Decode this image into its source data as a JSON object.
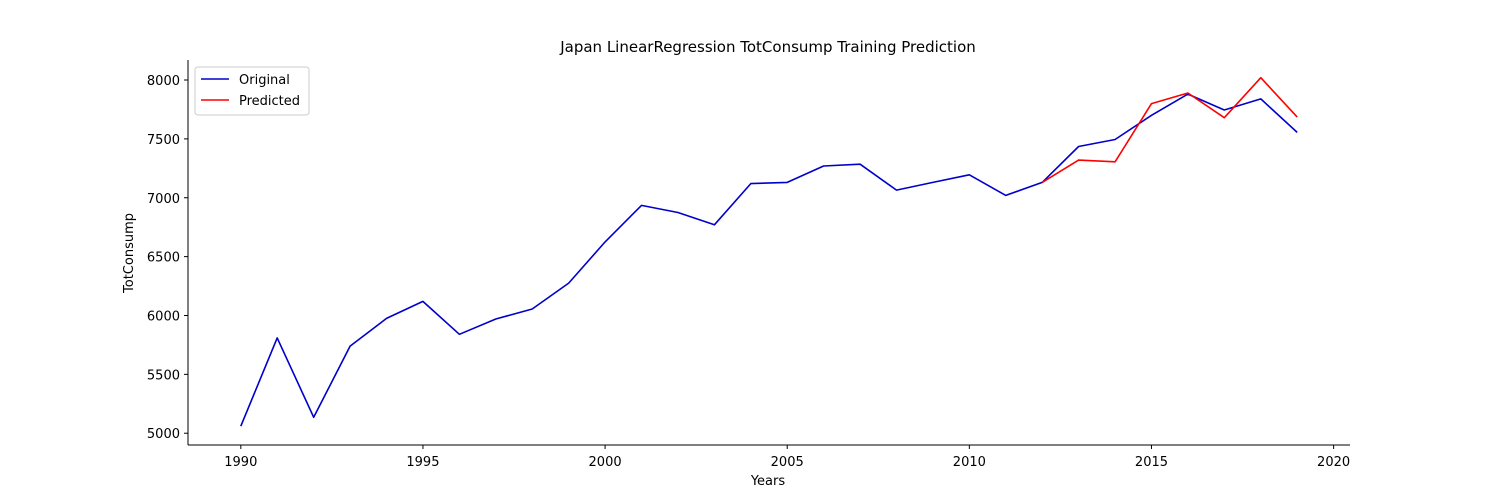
{
  "chart_data": {
    "type": "line",
    "title": "Japan LinearRegression TotConsump Training Prediction",
    "xlabel": "Years",
    "ylabel": "TotConsump",
    "xlim": [
      1988.55,
      2020.45
    ],
    "ylim": [
      4900,
      8170
    ],
    "xticks": [
      1990,
      1995,
      2000,
      2005,
      2010,
      2015,
      2020
    ],
    "yticks": [
      5000,
      5500,
      6000,
      6500,
      7000,
      7500,
      8000
    ],
    "grid": false,
    "legend_position": "top-left",
    "series": [
      {
        "name": "Original",
        "color": "#0000cc",
        "x": [
          1990,
          1991,
          1992,
          1993,
          1994,
          1995,
          1996,
          1997,
          1998,
          1999,
          2000,
          2001,
          2002,
          2003,
          2004,
          2005,
          2006,
          2007,
          2008,
          2009,
          2010,
          2011,
          2012,
          2013,
          2014,
          2015,
          2016,
          2017,
          2018,
          2019
        ],
        "y": [
          5060,
          5810,
          5135,
          5740,
          5975,
          6120,
          5840,
          5970,
          6055,
          6275,
          6625,
          6935,
          6875,
          6770,
          7120,
          7130,
          7270,
          7285,
          7065,
          7130,
          7195,
          7020,
          7130,
          7435,
          7495,
          7700,
          7880,
          7745,
          7840,
          7555
        ]
      },
      {
        "name": "Predicted",
        "color": "#ff0000",
        "x": [
          2012,
          2013,
          2014,
          2015,
          2016,
          2017,
          2018,
          2019
        ],
        "y": [
          7130,
          7320,
          7305,
          7800,
          7890,
          7680,
          8020,
          7685
        ]
      }
    ]
  }
}
